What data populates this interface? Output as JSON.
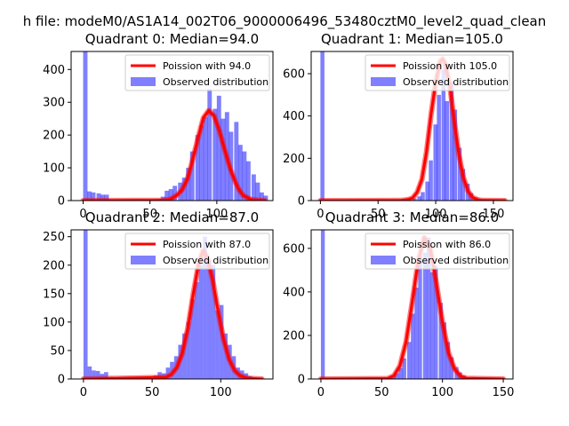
{
  "figure": {
    "suptitle": "h file: modeM0/AS1A14_002T06_9000006496_53480cztM0_level2_quad_clean"
  },
  "chart_data": [
    {
      "type": "bar",
      "title": "Quadrant 0: Median=94.0",
      "median": 94.0,
      "xlim": [
        -9,
        142
      ],
      "ylim": [
        0,
        455
      ],
      "xticks": [
        0,
        50,
        100
      ],
      "yticks": [
        0,
        100,
        200,
        300,
        400
      ],
      "legend": {
        "location": "top-right",
        "entries": [
          "Poission with 94.0",
          "Observed distribution"
        ]
      },
      "line_series": {
        "name": "Poission with 94.0",
        "x": [
          0,
          60,
          64,
          66,
          70,
          74,
          78,
          80,
          82,
          86,
          90,
          94,
          98,
          102,
          106,
          110,
          114,
          116,
          118,
          120,
          126,
          136
        ],
        "y": [
          0,
          1,
          3,
          6,
          16,
          33,
          66,
          95,
          126,
          192,
          253,
          275,
          258,
          212,
          153,
          98,
          55,
          38,
          25,
          15,
          3,
          0
        ]
      },
      "histogram": {
        "name": "Observed distribution",
        "bin_width": 3.25,
        "bins": [
          [
            0,
            455
          ],
          [
            3,
            28
          ],
          [
            6,
            25
          ],
          [
            10,
            22
          ],
          [
            13,
            18
          ],
          [
            16,
            18
          ],
          [
            55,
            5
          ],
          [
            58,
            12
          ],
          [
            61,
            30
          ],
          [
            64,
            35
          ],
          [
            67,
            45
          ],
          [
            71,
            55
          ],
          [
            74,
            70
          ],
          [
            77,
            100
          ],
          [
            80,
            150
          ],
          [
            84,
            200
          ],
          [
            87,
            230
          ],
          [
            90,
            255
          ],
          [
            93,
            340
          ],
          [
            97,
            280
          ],
          [
            100,
            320
          ],
          [
            103,
            250
          ],
          [
            106,
            270
          ],
          [
            109,
            210
          ],
          [
            113,
            240
          ],
          [
            116,
            170
          ],
          [
            119,
            150
          ],
          [
            122,
            120
          ],
          [
            126,
            80
          ],
          [
            129,
            55
          ],
          [
            132,
            25
          ],
          [
            135,
            15
          ]
        ]
      }
    },
    {
      "type": "bar",
      "title": "Quadrant 1: Median=105.0",
      "median": 105.0,
      "xlim": [
        -8,
        167
      ],
      "ylim": [
        0,
        705
      ],
      "xticks": [
        0,
        50,
        100,
        150
      ],
      "yticks": [
        0,
        200,
        400,
        600
      ],
      "legend": {
        "location": "top-right",
        "entries": [
          "Poission with 105.0",
          "Observed distribution"
        ]
      },
      "line_series": {
        "name": "Poission with 105.0",
        "x": [
          0,
          70,
          76,
          80,
          84,
          88,
          92,
          96,
          100,
          104,
          106,
          108,
          112,
          116,
          120,
          124,
          128,
          132,
          136,
          140,
          160
        ],
        "y": [
          0,
          1,
          5,
          12,
          40,
          100,
          230,
          410,
          560,
          660,
          670,
          650,
          550,
          380,
          220,
          110,
          45,
          15,
          5,
          1,
          0
        ]
      },
      "histogram": {
        "name": "Observed distribution",
        "bin_width": 3.5,
        "bins": [
          [
            0,
            705
          ],
          [
            80,
            10
          ],
          [
            84,
            20
          ],
          [
            87,
            40
          ],
          [
            91,
            90
          ],
          [
            94,
            190
          ],
          [
            98,
            360
          ],
          [
            101,
            500
          ],
          [
            105,
            620
          ],
          [
            108,
            470
          ],
          [
            112,
            560
          ],
          [
            115,
            430
          ],
          [
            119,
            250
          ],
          [
            122,
            150
          ],
          [
            126,
            80
          ],
          [
            129,
            35
          ],
          [
            133,
            15
          ],
          [
            136,
            5
          ]
        ]
      }
    },
    {
      "type": "bar",
      "title": "Quadrant 2: Median=87.0",
      "median": 87.0,
      "xlim": [
        -9,
        138
      ],
      "ylim": [
        0,
        262
      ],
      "xticks": [
        0,
        50,
        100
      ],
      "yticks": [
        0,
        50,
        100,
        150,
        200,
        250
      ],
      "legend": {
        "location": "top-right",
        "entries": [
          "Poission with 87.0",
          "Observed distribution"
        ]
      },
      "line_series": {
        "name": "Poission with 87.0",
        "x": [
          0,
          60,
          64,
          68,
          72,
          76,
          80,
          84,
          87,
          90,
          94,
          98,
          102,
          106,
          110,
          114,
          118,
          122,
          130
        ],
        "y": [
          0,
          3,
          8,
          20,
          45,
          90,
          150,
          205,
          225,
          215,
          175,
          120,
          70,
          35,
          15,
          6,
          2,
          1,
          0
        ]
      },
      "histogram": {
        "name": "Observed distribution",
        "bin_width": 3.0,
        "bins": [
          [
            0,
            262
          ],
          [
            3,
            22
          ],
          [
            6,
            15
          ],
          [
            9,
            14
          ],
          [
            12,
            9
          ],
          [
            15,
            12
          ],
          [
            51,
            6
          ],
          [
            54,
            12
          ],
          [
            57,
            10
          ],
          [
            60,
            20
          ],
          [
            63,
            30
          ],
          [
            66,
            40
          ],
          [
            69,
            60
          ],
          [
            72,
            80
          ],
          [
            75,
            100
          ],
          [
            78,
            140
          ],
          [
            81,
            170
          ],
          [
            84,
            200
          ],
          [
            87,
            250
          ],
          [
            90,
            210
          ],
          [
            93,
            200
          ],
          [
            96,
            120
          ],
          [
            99,
            130
          ],
          [
            102,
            80
          ],
          [
            105,
            60
          ],
          [
            108,
            40
          ],
          [
            111,
            20
          ],
          [
            114,
            15
          ],
          [
            117,
            10
          ],
          [
            120,
            5
          ]
        ]
      }
    },
    {
      "type": "bar",
      "title": "Quadrant 3: Median=86.0",
      "median": 86.0,
      "xlim": [
        -8,
        158
      ],
      "ylim": [
        0,
        685
      ],
      "xticks": [
        0,
        50,
        100,
        150
      ],
      "yticks": [
        0,
        200,
        400,
        600
      ],
      "legend": {
        "location": "top-right",
        "entries": [
          "Poission with 86.0",
          "Observed distribution"
        ]
      },
      "line_series": {
        "name": "Poission with 86.0",
        "x": [
          0,
          55,
          60,
          65,
          70,
          75,
          80,
          85,
          90,
          95,
          100,
          105,
          110,
          115,
          120,
          150
        ],
        "y": [
          0,
          2,
          15,
          60,
          170,
          350,
          540,
          650,
          600,
          440,
          260,
          120,
          45,
          12,
          3,
          0
        ]
      },
      "histogram": {
        "name": "Observed distribution",
        "bin_width": 3.2,
        "bins": [
          [
            0,
            685
          ],
          [
            55,
            5
          ],
          [
            58,
            12
          ],
          [
            61,
            25
          ],
          [
            64,
            50
          ],
          [
            67,
            95
          ],
          [
            71,
            170
          ],
          [
            74,
            300
          ],
          [
            77,
            420
          ],
          [
            80,
            560
          ],
          [
            84,
            580
          ],
          [
            87,
            650
          ],
          [
            90,
            490
          ],
          [
            93,
            520
          ],
          [
            97,
            350
          ],
          [
            100,
            260
          ],
          [
            103,
            170
          ],
          [
            106,
            100
          ],
          [
            110,
            55
          ],
          [
            113,
            30
          ],
          [
            116,
            15
          ],
          [
            119,
            8
          ]
        ]
      }
    }
  ]
}
